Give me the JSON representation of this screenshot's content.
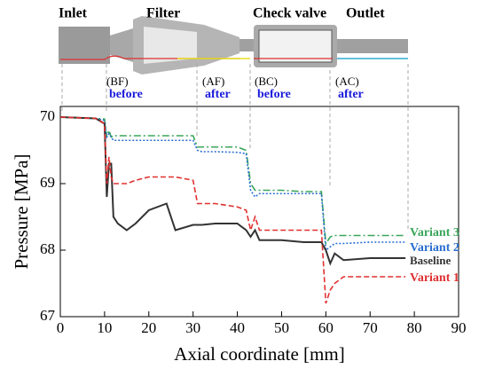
{
  "chart_data": {
    "type": "line",
    "section_labels": [
      "Inlet",
      "Filter",
      "Check valve",
      "Outlet"
    ],
    "point_labels": [
      {
        "code": "(BF)",
        "text": "before"
      },
      {
        "code": "(AF)",
        "text": "after"
      },
      {
        "code": "(BC)",
        "text": "before"
      },
      {
        "code": "(AC)",
        "text": "after"
      }
    ],
    "xlabel": "Axial coordinate [mm]",
    "ylabel": "Pressure [MPa]",
    "xlim": [
      0,
      90
    ],
    "ylim": [
      67,
      70.16
    ],
    "xticks": [
      0,
      10,
      20,
      30,
      40,
      50,
      60,
      70,
      80,
      90
    ],
    "yticks": [
      67,
      68,
      69,
      70
    ],
    "x": [
      0,
      8,
      10,
      10.5,
      11,
      11.5,
      12,
      13,
      15,
      17,
      20,
      24,
      26,
      30,
      31,
      32,
      35,
      40,
      42,
      43,
      44,
      45,
      50,
      55,
      59,
      60,
      61,
      62,
      64,
      70,
      78
    ],
    "series": [
      {
        "name": "Variant 3",
        "color": "#3aa55a",
        "dash": "8 3 2 3",
        "values": [
          70,
          69.98,
          69.97,
          69.7,
          69.8,
          69.7,
          69.72,
          69.72,
          69.72,
          69.72,
          69.72,
          69.72,
          69.72,
          69.72,
          69.55,
          69.55,
          69.55,
          69.55,
          69.5,
          69.0,
          68.9,
          68.9,
          68.9,
          68.88,
          68.88,
          68.1,
          68.2,
          68.22,
          68.22,
          68.22,
          68.22
        ]
      },
      {
        "name": "Variant 2",
        "color": "#2a6fd0",
        "dash": "2 2",
        "values": [
          70,
          69.98,
          69.95,
          69.7,
          69.75,
          69.7,
          69.65,
          69.65,
          69.65,
          69.65,
          69.65,
          69.65,
          69.65,
          69.65,
          69.5,
          69.48,
          69.48,
          69.47,
          69.45,
          68.9,
          68.8,
          68.85,
          68.85,
          68.85,
          68.85,
          68.0,
          68.05,
          68.1,
          68.1,
          68.12,
          68.12
        ]
      },
      {
        "name": "Baseline",
        "color": "#333333",
        "dash": "",
        "values": [
          70,
          69.98,
          69.9,
          68.8,
          69.3,
          69.3,
          68.5,
          68.4,
          68.3,
          68.4,
          68.6,
          68.7,
          68.3,
          68.38,
          68.38,
          68.38,
          68.4,
          68.4,
          68.3,
          68.2,
          68.3,
          68.15,
          68.15,
          68.12,
          68.12,
          68.0,
          67.8,
          67.95,
          67.85,
          67.88,
          67.88
        ]
      },
      {
        "name": "Variant 1",
        "color": "#e03030",
        "dash": "6 3",
        "values": [
          70,
          69.98,
          69.9,
          69.0,
          69.4,
          69.1,
          69.0,
          69.0,
          69.0,
          69.05,
          69.1,
          69.1,
          69.1,
          69.05,
          68.7,
          68.7,
          68.7,
          68.65,
          68.6,
          68.3,
          68.5,
          68.3,
          68.3,
          68.3,
          68.3,
          67.2,
          67.4,
          67.5,
          67.6,
          67.6,
          67.6
        ]
      }
    ]
  }
}
